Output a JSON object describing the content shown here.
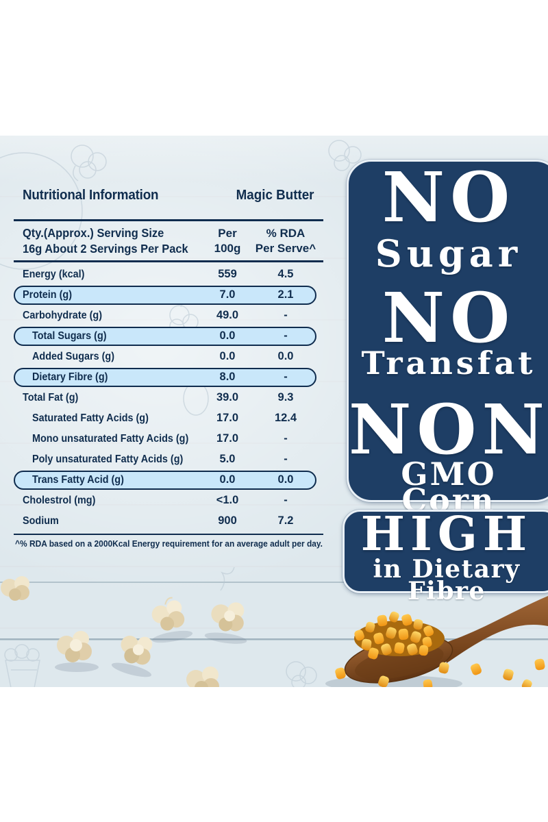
{
  "table": {
    "title": "Nutritional Information",
    "product": "Magic Butter",
    "serving_line1": "Qty.(Approx.) Serving Size",
    "serving_line2": "16g About 2 Servings Per Pack",
    "col_per_line1": "Per",
    "col_per_line2": "100g",
    "col_rda_line1": "% RDA",
    "col_rda_line2": "Per Serve^",
    "rows": [
      {
        "label": "Energy (kcal)",
        "per100g": "559",
        "rda": "4.5",
        "highlight": false,
        "indent": 0
      },
      {
        "label": "Protein (g)",
        "per100g": "7.0",
        "rda": "2.1",
        "highlight": true,
        "indent": 0
      },
      {
        "label": "Carbohydrate (g)",
        "per100g": "49.0",
        "rda": "-",
        "highlight": false,
        "indent": 0
      },
      {
        "label": "Total Sugars (g)",
        "per100g": "0.0",
        "rda": "-",
        "highlight": true,
        "indent": 1
      },
      {
        "label": "Added Sugars (g)",
        "per100g": "0.0",
        "rda": "0.0",
        "highlight": false,
        "indent": 1
      },
      {
        "label": "Dietary Fibre (g)",
        "per100g": "8.0",
        "rda": "-",
        "highlight": true,
        "indent": 1
      },
      {
        "label": "Total Fat (g)",
        "per100g": "39.0",
        "rda": "9.3",
        "highlight": false,
        "indent": 0
      },
      {
        "label": "Saturated Fatty Acids (g)",
        "per100g": "17.0",
        "rda": "12.4",
        "highlight": false,
        "indent": 1
      },
      {
        "label": "Mono unsaturated Fatty Acids (g)",
        "per100g": "17.0",
        "rda": "-",
        "highlight": false,
        "indent": 1
      },
      {
        "label": "Poly unsaturated Fatty Acids (g)",
        "per100g": "5.0",
        "rda": "-",
        "highlight": false,
        "indent": 1
      },
      {
        "label": "Trans Fatty Acid (g)",
        "per100g": "0.0",
        "rda": "0.0",
        "highlight": true,
        "indent": 1
      },
      {
        "label": "Cholestrol (mg)",
        "per100g": "<1.0",
        "rda": "-",
        "highlight": false,
        "indent": 0
      },
      {
        "label": "Sodium",
        "per100g": "900",
        "rda": "7.2",
        "highlight": false,
        "indent": 0
      }
    ],
    "footnote": "^% RDA based on a 2000Kcal Energy requirement for an average adult per day."
  },
  "badges": {
    "no_sugar": {
      "big": "NO",
      "small": "Sugar"
    },
    "no_transfat": {
      "big": "NO",
      "small": "Transfat"
    },
    "non_gmo": {
      "big": "NON",
      "small": "GMO Corn"
    },
    "high_fibre": {
      "big": "HIGH",
      "small": "in Dietary Fibre"
    }
  },
  "colors": {
    "navy": "#1e3e65",
    "navy-dark": "#0f2c4e",
    "text": "#102d4e",
    "hl-fill": "#c9e7fa",
    "photo-bg": "#dee8ed",
    "badge-border": "#e9f0f6",
    "corn-orange": "#f6a01f",
    "spoon-brown": "#7d4b20",
    "popcorn-cream": "#ece0c4"
  }
}
